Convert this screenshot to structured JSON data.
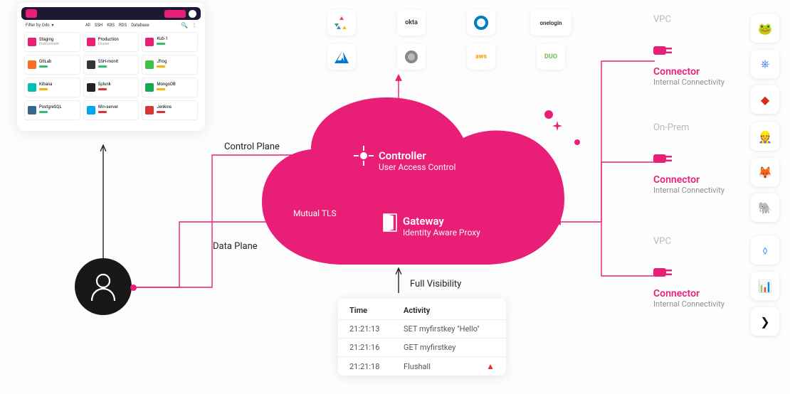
{
  "colors": {
    "brand": "#e91f77",
    "cloud": "#e91f77",
    "person": "#181818",
    "text": "#222",
    "muted": "#8f8f96",
    "cardhead": "#b9b9bd"
  },
  "app": {
    "filter_label": "Filter by Odo",
    "tabs": [
      "All",
      "SSH",
      "K8S",
      "RDS",
      "Database"
    ],
    "tiles": [
      {
        "name": "Staging",
        "sub": "Environment",
        "color": "#e91f77",
        "badge": null
      },
      {
        "name": "Production",
        "sub": "Cluster",
        "color": "#e91f77",
        "badge": null
      },
      {
        "name": "Kub-1",
        "sub": "",
        "color": "#e91f77",
        "badge": "#27c46b"
      },
      {
        "name": "GitLab",
        "sub": "",
        "color": "#fc6d26",
        "badge": "#27c46b"
      },
      {
        "name": "SSH-monit",
        "sub": "",
        "color": "#333",
        "badge": "#27c46b"
      },
      {
        "name": "Jfrog",
        "sub": "",
        "color": "#41bf47",
        "badge": "#f5b400"
      },
      {
        "name": "Kibana",
        "sub": "",
        "color": "#00bfb3",
        "badge": "#f5b400"
      },
      {
        "name": "Splunk",
        "sub": "",
        "color": "#222",
        "badge": "#e03030"
      },
      {
        "name": "MongoDB",
        "sub": "",
        "color": "#13aa52",
        "badge": "#f5b400"
      },
      {
        "name": "PostgreSQL",
        "sub": "",
        "color": "#336791",
        "badge": "#27c46b"
      },
      {
        "name": "Win-server",
        "sub": "",
        "color": "#00a4ef",
        "badge": "#e03030"
      },
      {
        "name": "Jenkins",
        "sub": "",
        "color": "#d33833",
        "badge": "#e03030"
      }
    ]
  },
  "cloud": {
    "controller": {
      "title": "Controller",
      "sub": "User Access Control"
    },
    "gateway": {
      "title": "Gateway",
      "sub": "Identity Aware Proxy"
    },
    "mutual_tls": "Mutual TLS"
  },
  "labels": {
    "control_plane": "Control Plane",
    "data_plane": "Data Plane",
    "full_visibility": "Full Visibility"
  },
  "idp_row1": [
    "gcp",
    "okta-wordmark",
    "okta",
    "onelogin"
  ],
  "idp_row2": [
    "azure",
    "circle",
    "aws",
    "duo"
  ],
  "idp_display": {
    "gcp": "",
    "okta-wordmark": "okta",
    "okta": "",
    "onelogin": "onelogin",
    "azure": "",
    "circle": "",
    "aws": "aws",
    "duo": "DUO"
  },
  "connectors": [
    {
      "head": "VPC",
      "title": "Connector",
      "sub": "Internal Connectivity",
      "services": [
        "jfrog",
        "kubernetes",
        "redis"
      ]
    },
    {
      "head": "On-Prem",
      "title": "Connector",
      "sub": "Internal Connectivity",
      "services": [
        "jenkins",
        "gitlab",
        "postgresql"
      ]
    },
    {
      "head": "VPC",
      "title": "Connector",
      "sub": "Internal Connectivity",
      "services": [
        "jira",
        "metrics",
        "terminal"
      ]
    }
  ],
  "log": {
    "headers": {
      "time": "Time",
      "activity": "Activity"
    },
    "rows": [
      {
        "time": "21:21:13",
        "activity": "SET myfirstkey \"Hello\"",
        "warn": false
      },
      {
        "time": "21:21:16",
        "activity": "GET myfirstkey",
        "warn": false
      },
      {
        "time": "21:21:18",
        "activity": "Flushall",
        "warn": true
      }
    ]
  }
}
